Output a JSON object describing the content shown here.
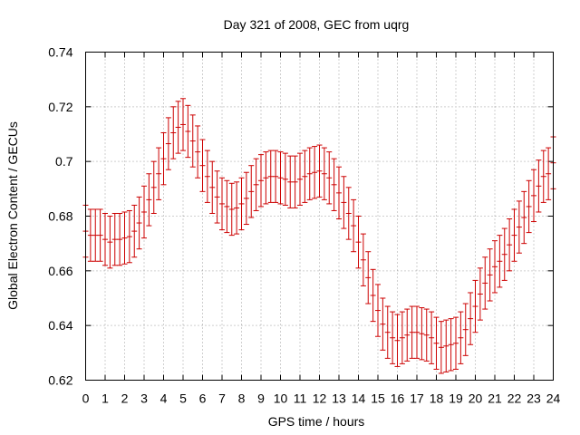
{
  "chart_data": {
    "type": "errorbar",
    "title": "Day 321 of 2008, GEC from uqrg",
    "xlabel": "GPS time / hours",
    "ylabel": "Global Electron Content / GECUs",
    "xlim": [
      0,
      24
    ],
    "ylim": [
      0.62,
      0.74
    ],
    "xticks": [
      "0",
      "1",
      "2",
      "3",
      "4",
      "5",
      "6",
      "7",
      "8",
      "9",
      "10",
      "11",
      "12",
      "13",
      "14",
      "15",
      "16",
      "17",
      "18",
      "19",
      "20",
      "21",
      "22",
      "23",
      "24"
    ],
    "yticks": [
      "0.62",
      "0.64",
      "0.66",
      "0.68",
      "0.7",
      "0.72",
      "0.74"
    ],
    "grid": true,
    "color": "#cc0000",
    "error": 0.0095,
    "series": [
      {
        "name": "GEC",
        "x": [
          0,
          0.25,
          0.5,
          0.75,
          1,
          1.25,
          1.5,
          1.75,
          2,
          2.25,
          2.5,
          2.75,
          3,
          3.25,
          3.5,
          3.75,
          4,
          4.25,
          4.5,
          4.75,
          5,
          5.25,
          5.5,
          5.75,
          6,
          6.25,
          6.5,
          6.75,
          7,
          7.25,
          7.5,
          7.75,
          8,
          8.25,
          8.5,
          8.75,
          9,
          9.25,
          9.5,
          9.75,
          10,
          10.25,
          10.5,
          10.75,
          11,
          11.25,
          11.5,
          11.75,
          12,
          12.25,
          12.5,
          12.75,
          13,
          13.25,
          13.5,
          13.75,
          14,
          14.25,
          14.5,
          14.75,
          15,
          15.25,
          15.5,
          15.75,
          16,
          16.25,
          16.5,
          16.75,
          17,
          17.25,
          17.5,
          17.75,
          18,
          18.25,
          18.5,
          18.75,
          19,
          19.25,
          19.5,
          19.75,
          20,
          20.25,
          20.5,
          20.75,
          21,
          21.25,
          21.5,
          21.75,
          22,
          22.25,
          22.5,
          22.75,
          23,
          23.25,
          23.5,
          23.75,
          24
        ],
        "y": [
          0.6745,
          0.673,
          0.673,
          0.673,
          0.6715,
          0.6705,
          0.6715,
          0.6715,
          0.672,
          0.6725,
          0.6745,
          0.6775,
          0.6815,
          0.686,
          0.6905,
          0.6955,
          0.701,
          0.7065,
          0.7105,
          0.7125,
          0.7135,
          0.711,
          0.7075,
          0.7035,
          0.6985,
          0.6945,
          0.6905,
          0.687,
          0.6845,
          0.6835,
          0.6825,
          0.683,
          0.6845,
          0.6865,
          0.689,
          0.6915,
          0.693,
          0.694,
          0.6945,
          0.6945,
          0.694,
          0.6935,
          0.6925,
          0.6925,
          0.6935,
          0.6945,
          0.6955,
          0.696,
          0.6965,
          0.6955,
          0.694,
          0.6915,
          0.6885,
          0.685,
          0.681,
          0.6765,
          0.6705,
          0.664,
          0.6575,
          0.651,
          0.6455,
          0.6405,
          0.6375,
          0.6355,
          0.6345,
          0.6355,
          0.6365,
          0.6375,
          0.6375,
          0.637,
          0.6365,
          0.6355,
          0.6335,
          0.632,
          0.6325,
          0.633,
          0.6335,
          0.6355,
          0.6385,
          0.6425,
          0.647,
          0.6515,
          0.6555,
          0.6585,
          0.6615,
          0.6635,
          0.666,
          0.6695,
          0.673,
          0.676,
          0.6795,
          0.6835,
          0.6875,
          0.691,
          0.6945,
          0.6955,
          0.6995
        ]
      }
    ]
  }
}
